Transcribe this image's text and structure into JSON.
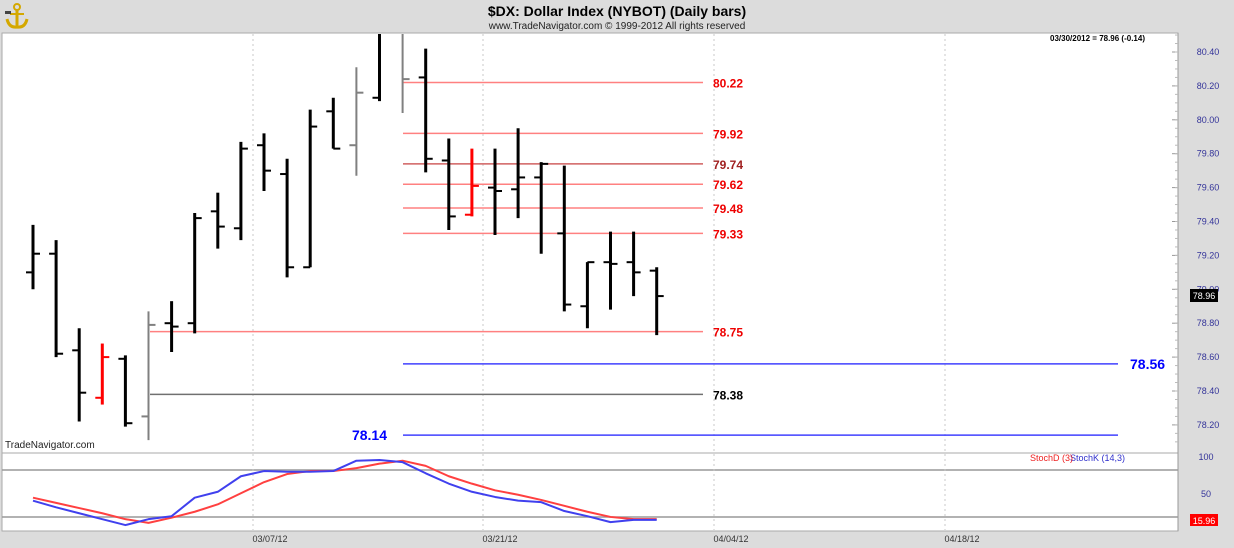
{
  "header": {
    "title": "$DX:  Dollar Index (NYBOT)  (Daily bars)",
    "copyright": "www.TradeNavigator.com © 1999-2012 All rights reserved",
    "logo_icon": "anchor-logo-icon",
    "quote": "03/30/2012 = 78.96 (-0.14)",
    "watermark": "TradeNavigator.com"
  },
  "chart_data": [
    {
      "type": "ohlc",
      "title": "$DX:  Dollar Index (NYBOT)  (Daily bars)",
      "ylim": [
        78.1,
        80.5
      ],
      "yticks": [
        "80.40",
        "80.20",
        "80.00",
        "79.80",
        "79.60",
        "79.40",
        "79.20",
        "79.00",
        "78.80",
        "78.60",
        "78.40",
        "78.20"
      ],
      "xticks": [
        "03/07/12",
        "03/21/12",
        "04/04/12",
        "04/18/12"
      ],
      "grid": "vertical dashed",
      "last_price_label": "78.96",
      "bars": [
        {
          "o": 79.1,
          "h": 79.38,
          "l": 79.0,
          "c": 79.21,
          "color": "#000000"
        },
        {
          "o": 79.21,
          "h": 79.29,
          "l": 78.6,
          "c": 78.62,
          "color": "#000000"
        },
        {
          "o": 78.64,
          "h": 78.77,
          "l": 78.22,
          "c": 78.39,
          "color": "#000000"
        },
        {
          "o": 78.36,
          "h": 78.68,
          "l": 78.32,
          "c": 78.6,
          "color": "#ff0000"
        },
        {
          "o": 78.59,
          "h": 78.61,
          "l": 78.19,
          "c": 78.21,
          "color": "#000000"
        },
        {
          "o": 78.25,
          "h": 78.87,
          "l": 78.11,
          "c": 78.79,
          "color": "#808080"
        },
        {
          "o": 78.8,
          "h": 78.93,
          "l": 78.63,
          "c": 78.78,
          "color": "#000000"
        },
        {
          "o": 78.8,
          "h": 79.45,
          "l": 78.74,
          "c": 79.42,
          "color": "#000000"
        },
        {
          "o": 79.46,
          "h": 79.57,
          "l": 79.24,
          "c": 79.37,
          "color": "#000000"
        },
        {
          "o": 79.36,
          "h": 79.87,
          "l": 79.29,
          "c": 79.83,
          "color": "#000000"
        },
        {
          "o": 79.85,
          "h": 79.92,
          "l": 79.58,
          "c": 79.7,
          "color": "#000000"
        },
        {
          "o": 79.68,
          "h": 79.77,
          "l": 79.07,
          "c": 79.13,
          "color": "#000000"
        },
        {
          "o": 79.13,
          "h": 80.06,
          "l": 79.13,
          "c": 79.96,
          "color": "#000000"
        },
        {
          "o": 80.05,
          "h": 80.13,
          "l": 79.83,
          "c": 79.83,
          "color": "#000000"
        },
        {
          "o": 79.85,
          "h": 80.31,
          "l": 79.67,
          "c": 80.16,
          "color": "#808080"
        },
        {
          "o": 80.13,
          "h": 80.6,
          "l": 80.11,
          "c": 80.55,
          "color": "#000000"
        },
        {
          "o": 80.55,
          "h": 80.6,
          "l": 80.04,
          "c": 80.24,
          "color": "#808080"
        },
        {
          "o": 80.25,
          "h": 80.42,
          "l": 79.69,
          "c": 79.77,
          "color": "#000000"
        },
        {
          "o": 79.76,
          "h": 79.89,
          "l": 79.35,
          "c": 79.43,
          "color": "#000000"
        },
        {
          "o": 79.44,
          "h": 79.83,
          "l": 79.43,
          "c": 79.61,
          "color": "#ff0000"
        },
        {
          "o": 79.6,
          "h": 79.83,
          "l": 79.32,
          "c": 79.58,
          "color": "#000000"
        },
        {
          "o": 79.59,
          "h": 79.95,
          "l": 79.42,
          "c": 79.66,
          "color": "#000000"
        },
        {
          "o": 79.66,
          "h": 79.75,
          "l": 79.21,
          "c": 79.74,
          "color": "#000000"
        },
        {
          "o": 79.33,
          "h": 79.73,
          "l": 78.87,
          "c": 78.91,
          "color": "#000000"
        },
        {
          "o": 78.9,
          "h": 79.16,
          "l": 78.77,
          "c": 79.16,
          "color": "#000000"
        },
        {
          "o": 79.16,
          "h": 79.34,
          "l": 78.88,
          "c": 79.15,
          "color": "#000000"
        },
        {
          "o": 79.16,
          "h": 79.34,
          "l": 78.96,
          "c": 79.1,
          "color": "#000000"
        },
        {
          "o": 79.11,
          "h": 79.13,
          "l": 78.73,
          "c": 78.96,
          "color": "#000000"
        }
      ],
      "levels": [
        {
          "label": "80.22",
          "price": 80.22,
          "line_color": "#ff8080",
          "label_color": "#ee0000"
        },
        {
          "label": "79.92",
          "price": 79.92,
          "line_color": "#ff8080",
          "label_color": "#ee0000"
        },
        {
          "label": "79.74",
          "price": 79.74,
          "line_color": "#d06060",
          "label_color": "#a02020"
        },
        {
          "label": "79.62",
          "price": 79.62,
          "line_color": "#ff8080",
          "label_color": "#ee0000"
        },
        {
          "label": "79.48",
          "price": 79.48,
          "line_color": "#ff8080",
          "label_color": "#ee0000"
        },
        {
          "label": "79.33",
          "price": 79.33,
          "line_color": "#ff8080",
          "label_color": "#ee0000"
        },
        {
          "label": "78.75",
          "price": 78.75,
          "line_color": "#ff8080",
          "label_color": "#ee0000"
        },
        {
          "label": "78.38",
          "price": 78.38,
          "line_color": "#707070",
          "label_color": "#000000"
        },
        {
          "label": "78.56",
          "price": 78.56,
          "line_color": "#4040ff",
          "label_color": "#0000ff"
        },
        {
          "label": "78.14",
          "price": 78.14,
          "line_color": "#4040ff",
          "label_color": "#0000ff"
        }
      ]
    },
    {
      "type": "line",
      "ylim": [
        0,
        100
      ],
      "yticks": [
        "100",
        "50"
      ],
      "last_value_label": "15.96",
      "series": [
        {
          "name": "StochD (3)",
          "color": "#ff4040",
          "values": [
            45,
            38,
            31,
            24,
            16,
            11,
            18,
            26,
            36,
            51,
            66,
            77,
            81,
            81,
            85,
            91,
            95,
            88,
            74,
            64,
            55,
            49,
            42,
            34,
            26,
            19,
            16,
            16
          ]
        },
        {
          "name": "StochK (14,3)",
          "color": "#4040ee",
          "values": [
            41,
            32,
            24,
            16,
            8,
            16,
            20,
            45,
            53,
            74,
            81,
            80,
            80,
            81,
            95,
            96,
            93,
            78,
            64,
            53,
            46,
            41,
            39,
            27,
            20,
            12,
            15,
            15
          ]
        }
      ]
    }
  ]
}
